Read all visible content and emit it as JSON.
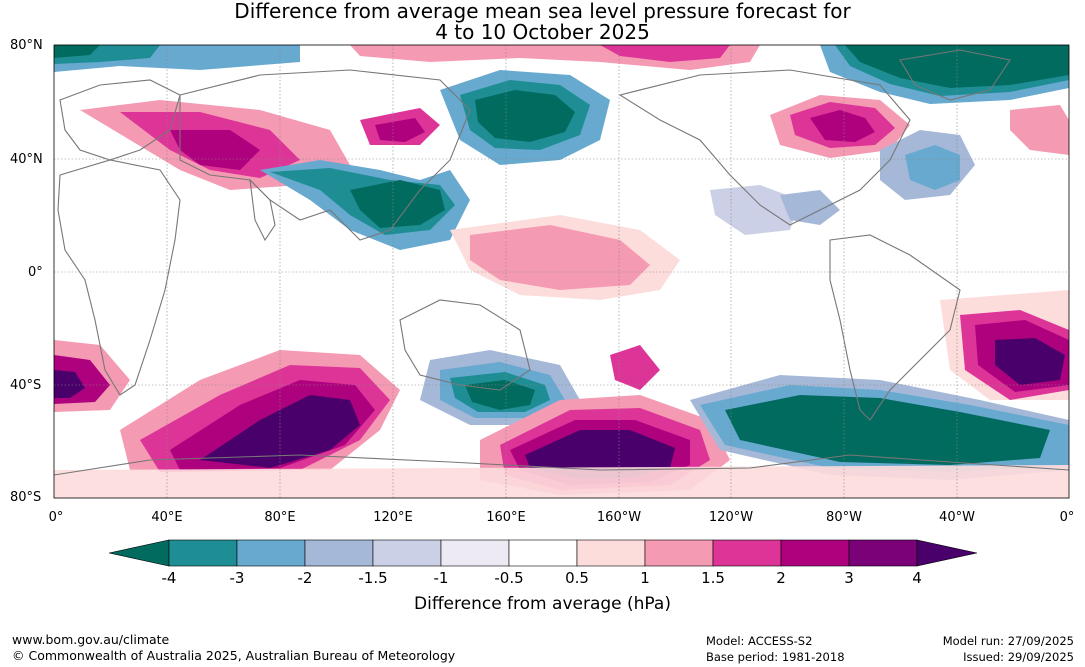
{
  "title": {
    "line1": "Difference from average mean sea level pressure forecast for",
    "line2": "4 to 10 October 2025"
  },
  "map": {
    "lat_labels": [
      "80°N",
      "40°N",
      "0°",
      "40°S",
      "80°S"
    ],
    "lon_labels": [
      "0°",
      "40°E",
      "80°E",
      "120°E",
      "160°E",
      "160°W",
      "120°W",
      "80°W",
      "40°W",
      "0°"
    ]
  },
  "colorbar": {
    "title": "Difference from average (hPa)",
    "ticks": [
      "-4",
      "-3",
      "-2",
      "-1.5",
      "-1",
      "-0.5",
      "0.5",
      "1",
      "1.5",
      "2",
      "3",
      "4"
    ],
    "colors": [
      "#006b5e",
      "#1e8e94",
      "#67a9cf",
      "#a5b8d8",
      "#ccd0e6",
      "#eeeaf3",
      "#ffffff",
      "#fddcdc",
      "#f59ab3",
      "#dd3497",
      "#ae017e",
      "#7a0177",
      "#49006a"
    ]
  },
  "footer": {
    "website": "www.bom.gov.au/climate",
    "copyright": "© Commonwealth of Australia 2025, Australian Bureau of Meteorology",
    "model": "Model: ACCESS-S2",
    "base_period": "Base period: 1981-2018",
    "model_run": "Model run: 27/09/2025",
    "issued": "Issued: 29/09/2025"
  }
}
